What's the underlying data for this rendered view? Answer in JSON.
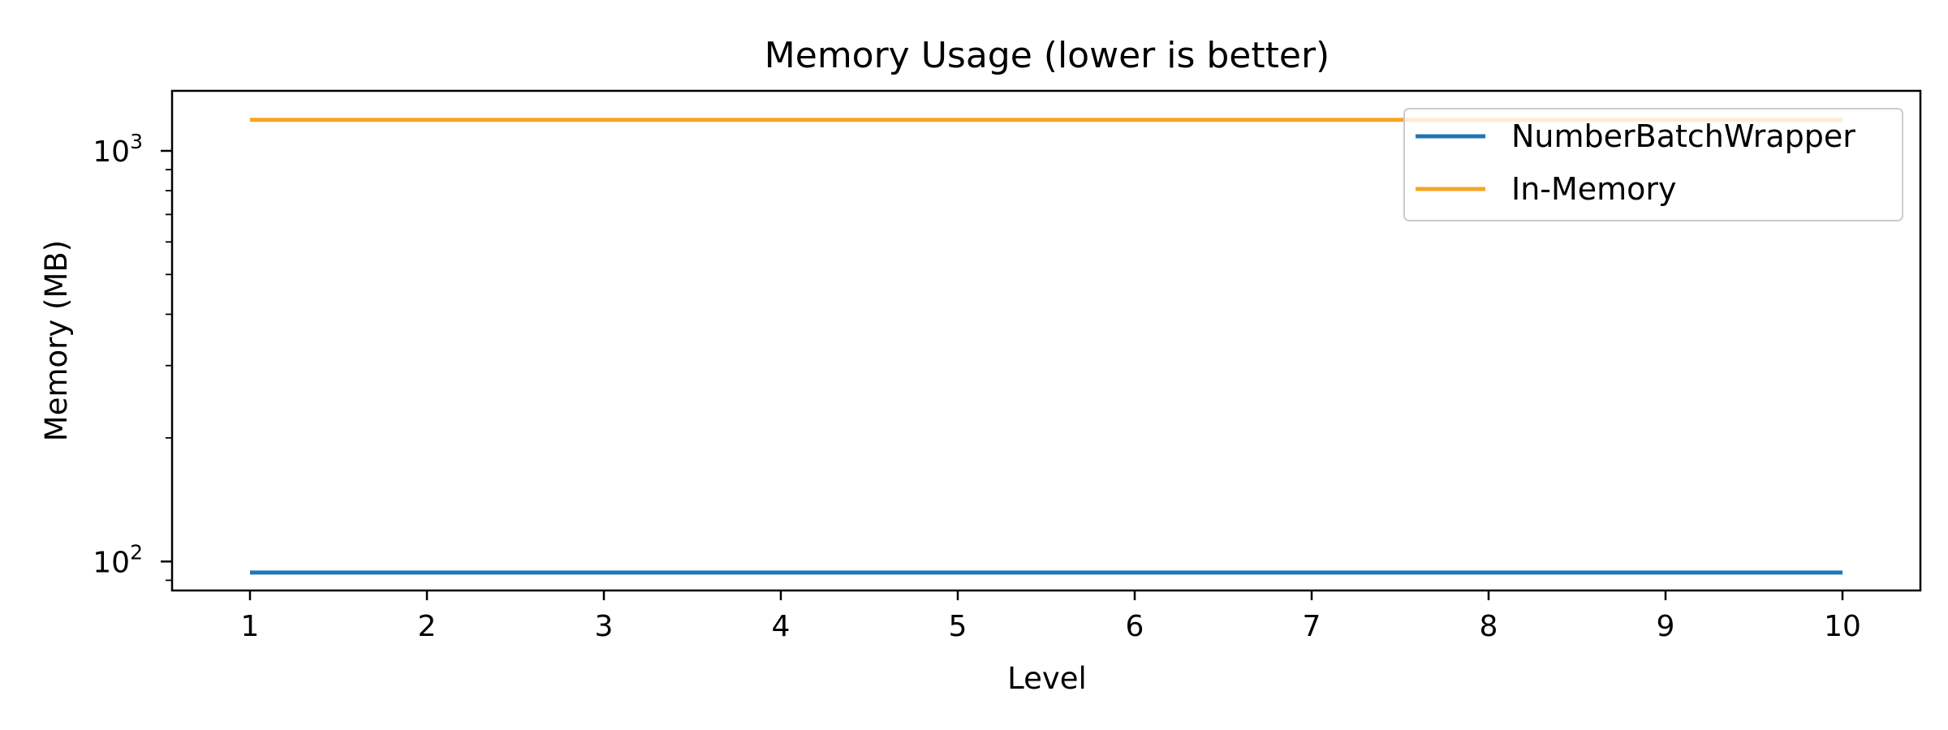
{
  "chart_data": {
    "type": "line",
    "title": "Memory Usage (lower is better)",
    "xlabel": "Level",
    "ylabel": "Memory (MB)",
    "x": [
      1,
      2,
      3,
      4,
      5,
      6,
      7,
      8,
      9,
      10
    ],
    "x_tick_labels": [
      "1",
      "2",
      "3",
      "4",
      "5",
      "6",
      "7",
      "8",
      "9",
      "10"
    ],
    "y_scale": "log",
    "ylim": [
      85,
      1400
    ],
    "y_tick_values": [
      100,
      1000
    ],
    "y_tick_labels": [
      {
        "base": "10",
        "exp": "2"
      },
      {
        "base": "10",
        "exp": "3"
      }
    ],
    "series": [
      {
        "name": "NumberBatchWrapper",
        "color": "#1f77b4",
        "values": [
          94,
          94,
          94,
          94,
          94,
          94,
          94,
          94,
          94,
          94
        ]
      },
      {
        "name": "In-Memory",
        "color": "#f5a623",
        "values": [
          1190,
          1190,
          1190,
          1190,
          1190,
          1190,
          1190,
          1190,
          1190,
          1190
        ]
      }
    ],
    "legend_placement": "top-right",
    "grid": false
  }
}
